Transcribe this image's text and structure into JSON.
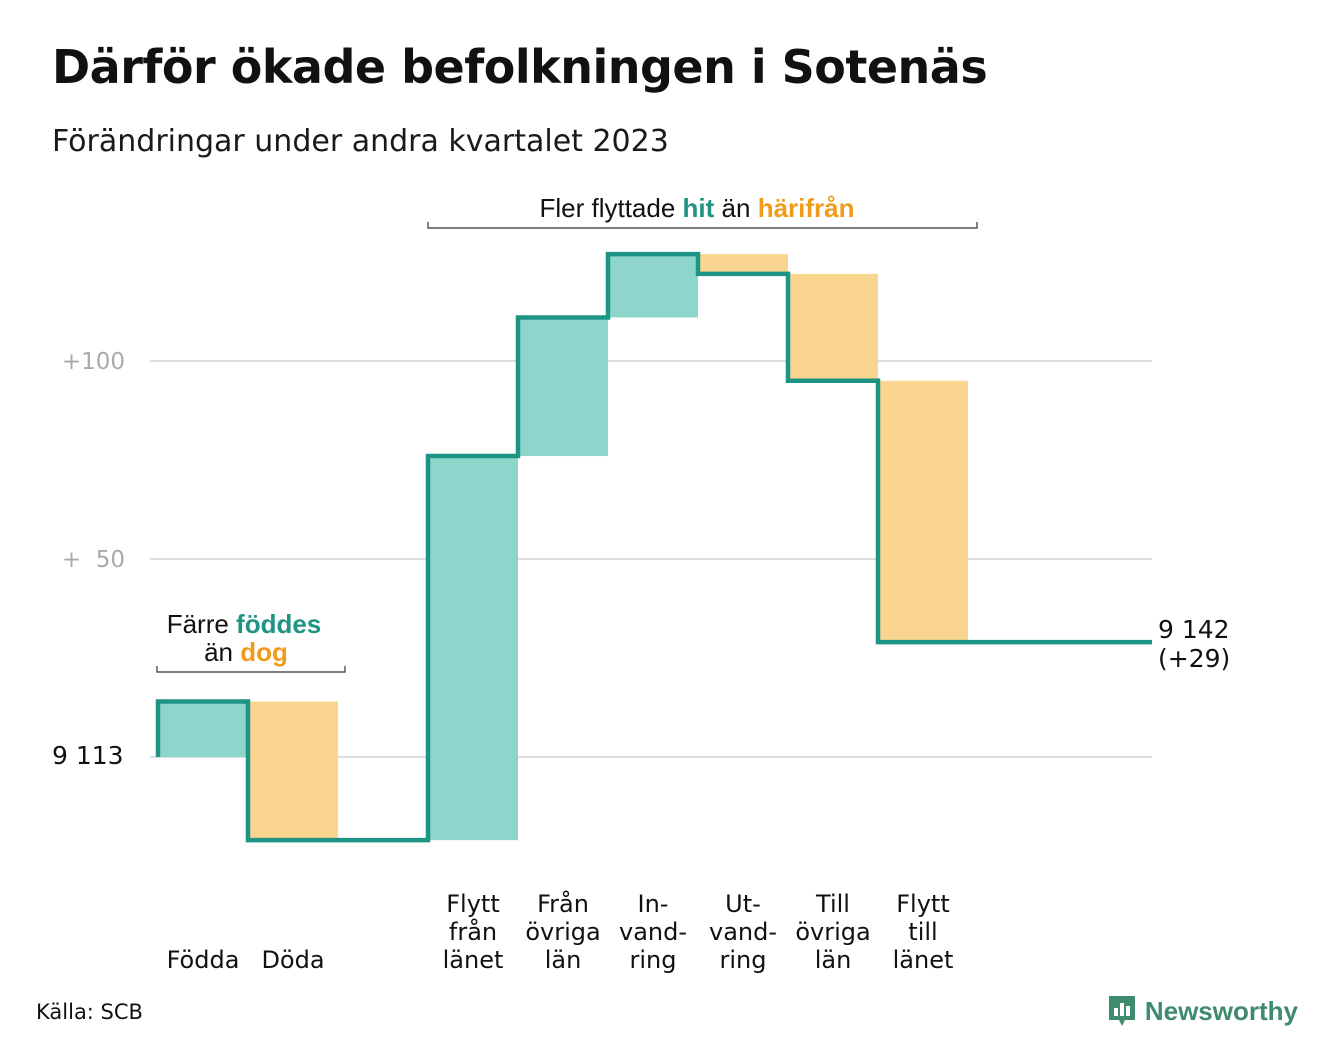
{
  "title": "Därför ökade befolkningen i Sotenäs",
  "subtitle": "Förändringar under andra kvartalet 2023",
  "source": "Källa: SCB",
  "brand": "Newsworthy",
  "colors": {
    "line": "#1e9484",
    "positive_fill": "#8ed5cc",
    "negative_fill": "#fad58f",
    "positive_text": "#1e9484",
    "negative_text": "#f09c1a",
    "grid": "#dddddd",
    "tick_text": "#aaaaaa",
    "brand": "#3f8b6d"
  },
  "annotations": {
    "births": {
      "line1_plain": "Färre ",
      "line1_highlight": "föddes",
      "line2_plain": "än ",
      "line2_highlight": "dog"
    },
    "migration": {
      "plain1": "Fler flyttade ",
      "highlight1": "hit",
      "plain2": " än ",
      "highlight2": "härifrån"
    }
  },
  "start_label": "9  113",
  "end_label": {
    "value": "9 142",
    "change": "(+29)"
  },
  "chart_data": {
    "type": "waterfall",
    "start_value": 9113,
    "end_value": 9142,
    "y_ticks": [
      {
        "value": 9213,
        "label": "+100"
      },
      {
        "value": 9163,
        "label": "+  50"
      },
      {
        "value": 9113,
        "label": ""
      }
    ],
    "steps": [
      {
        "category": "Födda",
        "label_lines": [
          "Födda"
        ],
        "change": 14
      },
      {
        "category": "Döda",
        "label_lines": [
          "Döda"
        ],
        "change": -35
      },
      {
        "category": "",
        "label_lines": [],
        "change": 0
      },
      {
        "category": "Flytt från länet",
        "label_lines": [
          "Flytt",
          "från",
          "länet"
        ],
        "change": 97
      },
      {
        "category": "Från övriga län",
        "label_lines": [
          "Från",
          "övriga",
          "län"
        ],
        "change": 35
      },
      {
        "category": "In-vandring",
        "label_lines": [
          "In-",
          "vand-",
          "ring"
        ],
        "change": 16
      },
      {
        "category": "Ut-vandring",
        "label_lines": [
          "Ut-",
          "vand-",
          "ring"
        ],
        "change": -5
      },
      {
        "category": "Till övriga län",
        "label_lines": [
          "Till",
          "övriga",
          "län"
        ],
        "change": -27
      },
      {
        "category": "Flytt till länet",
        "label_lines": [
          "Flytt",
          "till",
          "länet"
        ],
        "change": -66
      }
    ]
  }
}
